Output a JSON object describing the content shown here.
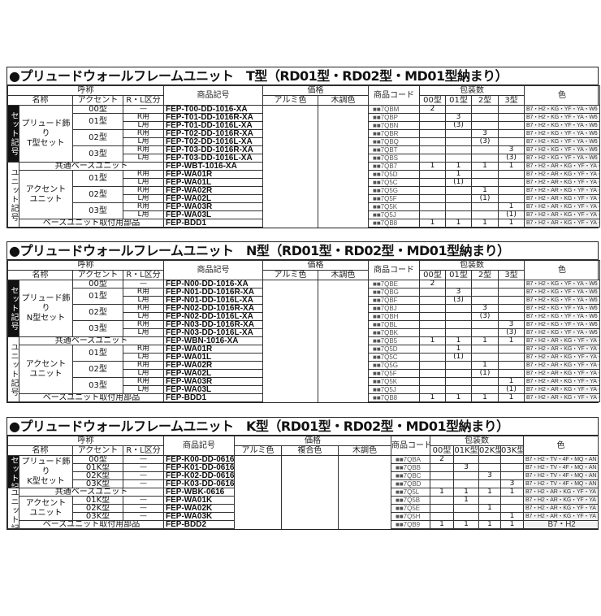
{
  "tables": [
    {
      "title": "●プリュードウォールフレームユニット　T型（RD01型・RD02型・MD01型納まり）",
      "headers": {
        "nominal": "呼称",
        "name": "名称",
        "accent": "アクセント",
        "rl": "R・L区分",
        "symbol": "商品記号",
        "price": "価格",
        "price_cols": [
          "アルミ色",
          "木調色"
        ],
        "code": "商品コード",
        "pack": "包装数",
        "pack_cols": [
          "00型",
          "01型",
          "2型",
          "3型"
        ],
        "color": "色"
      },
      "groups": [
        {
          "side": "セット記号",
          "dark": true,
          "rows": [
            {
              "name": "プリュード飾り\nT型セット",
              "accent": "00型",
              "rl": "—",
              "symbol": "FEP-T00-DD-1016-XA",
              "code": "■■7QBM",
              "qty": [
                "2",
                "",
                "",
                ""
              ],
              "color": "B7・H2・KG・YF・YA・W6"
            },
            {
              "name": "プリュード飾り\nT型セット",
              "accent": "01型",
              "rl": "R用",
              "symbol": "FEP-T01-DD-1016R-XA",
              "code": "■■7QBP",
              "qty": [
                "",
                "3",
                "",
                ""
              ],
              "color": "B7・H2・KG・YF・YA・W6"
            },
            {
              "name": "プリュード飾り\nT型セット",
              "accent": "01型",
              "rl": "L用",
              "symbol": "FEP-T01-DD-1016L-XA",
              "code": "■■7QBN",
              "qty": [
                "",
                "(3)",
                "",
                ""
              ],
              "color": "B7・H2・KG・YF・YA・W6"
            },
            {
              "name": "プリュード飾り\nT型セット",
              "accent": "02型",
              "rl": "R用",
              "symbol": "FEP-T02-DD-1016R-XA",
              "code": "■■7QBR",
              "qty": [
                "",
                "",
                "3",
                ""
              ],
              "color": "B7・H2・KG・YF・YA・W6"
            },
            {
              "name": "プリュード飾り\nT型セット",
              "accent": "02型",
              "rl": "L用",
              "symbol": "FEP-T02-DD-1016L-XA",
              "code": "■■7QBQ",
              "qty": [
                "",
                "",
                "(3)",
                ""
              ],
              "color": "B7・H2・KG・YF・YA・W6"
            },
            {
              "name": "プリュード飾り\nT型セット",
              "accent": "03型",
              "rl": "R用",
              "symbol": "FEP-T03-DD-1016R-XA",
              "code": "■■7QBT",
              "qty": [
                "",
                "",
                "",
                "3"
              ],
              "color": "B7・H2・KG・YF・YA・W6"
            },
            {
              "name": "プリュード飾り\nT型セット",
              "accent": "03型",
              "rl": "L用",
              "symbol": "FEP-T03-DD-1016L-XA",
              "code": "■■7QBS",
              "qty": [
                "",
                "",
                "",
                "(3)"
              ],
              "color": "B7・H2・KG・YF・YA・W6"
            }
          ]
        },
        {
          "side": "ユニット記号",
          "dark": false,
          "rows": [
            {
              "span_label": "共通ベースユニット",
              "symbol": "FEP-WBT-1016-XA",
              "code": "■■7QB7",
              "qty": [
                "1",
                "1",
                "1",
                "1"
              ],
              "color": "B7・H2・AR・KG・YF・YA・W6"
            },
            {
              "name": "アクセント\nユニット",
              "accent": "01型",
              "rl": "R用",
              "symbol": "FEP-WA01R",
              "code": "■■7Q5D",
              "qty": [
                "",
                "1",
                "",
                ""
              ],
              "color": "B7・H2・AR・KG・YF・YA・W6"
            },
            {
              "name": "アクセント\nユニット",
              "accent": "01型",
              "rl": "L用",
              "symbol": "FEP-WA01L",
              "code": "■■7Q5C",
              "qty": [
                "",
                "(1)",
                "",
                ""
              ],
              "color": "B7・H2・AR・KG・YF・YA・W6"
            },
            {
              "name": "アクセント\nユニット",
              "accent": "02型",
              "rl": "R用",
              "symbol": "FEP-WA02R",
              "code": "■■7Q5G",
              "qty": [
                "",
                "",
                "1",
                ""
              ],
              "color": "B7・H2・AR・KG・YF・YA・W6"
            },
            {
              "name": "アクセント\nユニット",
              "accent": "02型",
              "rl": "L用",
              "symbol": "FEP-WA02L",
              "code": "■■7Q5F",
              "qty": [
                "",
                "",
                "(1)",
                ""
              ],
              "color": "B7・H2・AR・KG・YF・YA・W6"
            },
            {
              "name": "アクセント\nユニット",
              "accent": "03型",
              "rl": "R用",
              "symbol": "FEP-WA03R",
              "code": "■■7Q5K",
              "qty": [
                "",
                "",
                "",
                "1"
              ],
              "color": "B7・H2・AR・KG・YF・YA・W6"
            },
            {
              "name": "アクセント\nユニット",
              "accent": "03型",
              "rl": "L用",
              "symbol": "FEP-WA03L",
              "code": "■■7Q5J",
              "qty": [
                "",
                "",
                "",
                "(1)"
              ],
              "color": "B7・H2・AR・KG・YF・YA・W6"
            },
            {
              "span_label": "ベースユニット取付用部品",
              "symbol": "FEP-BDD1",
              "code": "■■7QB8",
              "qty": [
                "1",
                "1",
                "1",
                "1"
              ],
              "color": "B7・H2・AR・KG・YF・YA・W6"
            }
          ]
        }
      ]
    },
    {
      "title": "●プリュードウォールフレームユニット　N型（RD01型・RD02型・MD01型納まり）",
      "headers": {
        "nominal": "呼称",
        "name": "名称",
        "accent": "アクセント",
        "rl": "R・L区分",
        "symbol": "商品記号",
        "price": "価格",
        "price_cols": [
          "アルミ色",
          "木調色"
        ],
        "code": "商品コード",
        "pack": "包装数",
        "pack_cols": [
          "00型",
          "01型",
          "2型",
          "3型"
        ],
        "color": "色"
      },
      "groups": [
        {
          "side": "セット記号",
          "dark": true,
          "rows": [
            {
              "name": "プリュード飾り\nN型セット",
              "accent": "00型",
              "rl": "—",
              "symbol": "FEP-N00-DD-1016-XA",
              "code": "■■7QBE",
              "qty": [
                "2",
                "",
                "",
                ""
              ],
              "color": "B7・H2・KG・YF・YA・W6"
            },
            {
              "name": "プリュード飾り\nN型セット",
              "accent": "01型",
              "rl": "R用",
              "symbol": "FEP-N01-DD-1016R-XA",
              "code": "■■7QBG",
              "qty": [
                "",
                "3",
                "",
                ""
              ],
              "color": "B7・H2・KG・YF・YA・W6"
            },
            {
              "name": "プリュード飾り\nN型セット",
              "accent": "01型",
              "rl": "L用",
              "symbol": "FEP-N01-DD-1016L-XA",
              "code": "■■7QBF",
              "qty": [
                "",
                "(3)",
                "",
                ""
              ],
              "color": "B7・H2・KG・YF・YA・W6"
            },
            {
              "name": "プリュード飾り\nN型セット",
              "accent": "02型",
              "rl": "R用",
              "symbol": "FEP-N02-DD-1016R-XA",
              "code": "■■7QBJ",
              "qty": [
                "",
                "",
                "3",
                ""
              ],
              "color": "B7・H2・KG・YF・YA・W6"
            },
            {
              "name": "プリュード飾り\nN型セット",
              "accent": "02型",
              "rl": "L用",
              "symbol": "FEP-N02-DD-1016L-XA",
              "code": "■■7QBH",
              "qty": [
                "",
                "",
                "(3)",
                ""
              ],
              "color": "B7・H2・KG・YF・YA・W6"
            },
            {
              "name": "プリュード飾り\nN型セット",
              "accent": "03型",
              "rl": "R用",
              "symbol": "FEP-N03-DD-1016R-XA",
              "code": "■■7QBL",
              "qty": [
                "",
                "",
                "",
                "3"
              ],
              "color": "B7・H2・KG・YF・YA・W6"
            },
            {
              "name": "プリュード飾り\nN型セット",
              "accent": "03型",
              "rl": "L用",
              "symbol": "FEP-N03-DD-1016L-XA",
              "code": "■■7QBK",
              "qty": [
                "",
                "",
                "",
                "(3)"
              ],
              "color": "B7・H2・KG・YF・YA・W6"
            }
          ]
        },
        {
          "side": "ユニット記号",
          "dark": false,
          "rows": [
            {
              "span_label": "共通ベースユニット",
              "symbol": "FEP-WBN-1016-XA",
              "code": "■■7QB5",
              "qty": [
                "1",
                "1",
                "1",
                "1"
              ],
              "color": "B7・H2・AR・KG・YF・YA・W6"
            },
            {
              "name": "アクセント\nユニット",
              "accent": "01型",
              "rl": "R用",
              "symbol": "FEP-WA01R",
              "code": "■■7Q5D",
              "qty": [
                "",
                "1",
                "",
                ""
              ],
              "color": "B7・H2・AR・KG・YF・YA・W6"
            },
            {
              "name": "アクセント\nユニット",
              "accent": "01型",
              "rl": "L用",
              "symbol": "FEP-WA01L",
              "code": "■■7Q5C",
              "qty": [
                "",
                "(1)",
                "",
                ""
              ],
              "color": "B7・H2・AR・KG・YF・YA・W6"
            },
            {
              "name": "アクセント\nユニット",
              "accent": "02型",
              "rl": "R用",
              "symbol": "FEP-WA02R",
              "code": "■■7Q5G",
              "qty": [
                "",
                "",
                "1",
                ""
              ],
              "color": "B7・H2・AR・KG・YF・YA・W6"
            },
            {
              "name": "アクセント\nユニット",
              "accent": "02型",
              "rl": "L用",
              "symbol": "FEP-WA02L",
              "code": "■■7Q5F",
              "qty": [
                "",
                "",
                "(1)",
                ""
              ],
              "color": "B7・H2・AR・KG・YF・YA・W6"
            },
            {
              "name": "アクセント\nユニット",
              "accent": "03型",
              "rl": "R用",
              "symbol": "FEP-WA03R",
              "code": "■■7Q5K",
              "qty": [
                "",
                "",
                "",
                "1"
              ],
              "color": "B7・H2・AR・KG・YF・YA・W6"
            },
            {
              "name": "アクセント\nユニット",
              "accent": "03型",
              "rl": "L用",
              "symbol": "FEP-WA03L",
              "code": "■■7Q5J",
              "qty": [
                "",
                "",
                "",
                "(1)"
              ],
              "color": "B7・H2・AR・KG・YF・YA・W6"
            },
            {
              "span_label": "ベースユニット取付用部品",
              "symbol": "FEP-BDD1",
              "code": "■■7QB8",
              "qty": [
                "1",
                "1",
                "1",
                "1"
              ],
              "color": "B7・H2・AR・KG・YF・YA・W6"
            }
          ]
        }
      ]
    },
    {
      "title": "●プリュードウォールフレームユニット　K型（RD01型・RD02型・MD01型納まり）",
      "headers": {
        "nominal": "呼称",
        "name": "名称",
        "accent": "アクセント",
        "rl": "R・L区分",
        "symbol": "商品記号",
        "price": "価格",
        "price_cols": [
          "アルミ色",
          "複合色",
          "木調色"
        ],
        "code": "商品コード",
        "pack": "包装数",
        "pack_cols": [
          "00型",
          "01K型",
          "02K型",
          "03K型"
        ],
        "color": "色"
      },
      "groups": [
        {
          "side": "セット記号",
          "dark": true,
          "rows": [
            {
              "name": "プリュード飾り\nK型セット",
              "accent": "00型",
              "rl": "—",
              "symbol": "FEP-K00-DD-0616",
              "code": "■■7QBA",
              "qty": [
                "2",
                "",
                "",
                ""
              ],
              "color": "B7・H2・TV・4F・MQ・AN・JQ・SI・PV・4D"
            },
            {
              "name": "プリュード飾り\nK型セット",
              "accent": "01K型",
              "rl": "—",
              "symbol": "FEP-K01-DD-0616",
              "code": "■■7QBB",
              "qty": [
                "",
                "3",
                "",
                ""
              ],
              "color": "B7・H2・TV・4F・MQ・AN・JQ・SI・PV・4D"
            },
            {
              "name": "プリュード飾り\nK型セット",
              "accent": "02K型",
              "rl": "—",
              "symbol": "FEP-K02-DD-0616",
              "code": "■■7QBC",
              "qty": [
                "",
                "",
                "3",
                ""
              ],
              "color": "B7・H2・TV・4F・MQ・AN・JQ・SI・PV・4D"
            },
            {
              "name": "プリュード飾り\nK型セット",
              "accent": "03K型",
              "rl": "—",
              "symbol": "FEP-K03-DD-0616",
              "code": "■■7QBD",
              "qty": [
                "",
                "",
                "",
                "3"
              ],
              "color": "B7・H2・TV・4F・MQ・AN・JQ・SI・PV・4D"
            }
          ]
        },
        {
          "side": "ユニット記号",
          "dark": false,
          "rows": [
            {
              "span_label": "共通ベースユニット",
              "symbol": "FEP-WBK-0616",
              "code": "■■7Q5L",
              "qty": [
                "1",
                "1",
                "1",
                "1"
              ],
              "color": "B7・H2・AR・KG・YF・YA・W6"
            },
            {
              "name": "アクセント\nユニット",
              "accent": "01K型",
              "rl": "—",
              "symbol": "FEP-WA01K",
              "code": "■■7Q5B",
              "qty": [
                "",
                "1",
                "",
                ""
              ],
              "color": "B7・H2・AR・KG・YF・YA・W6"
            },
            {
              "name": "アクセント\nユニット",
              "accent": "02K型",
              "rl": "—",
              "symbol": "FEP-WA02K",
              "code": "■■7Q5E",
              "qty": [
                "",
                "",
                "1",
                ""
              ],
              "color": "B7・H2・AR・KG・YF・YA・W6"
            },
            {
              "name": "アクセント\nユニット",
              "accent": "03K型",
              "rl": "—",
              "symbol": "FEP-WA03K",
              "code": "■■7Q5H",
              "qty": [
                "",
                "",
                "",
                "1"
              ],
              "color": "B7・H2・AR・KG・YF・YA・W6"
            },
            {
              "span_label": "ベースユニット取付用部品",
              "symbol": "FEP-BDD2",
              "code": "■■7QB9",
              "qty": [
                "1",
                "1",
                "1",
                "1"
              ],
              "color": "B7・H2"
            }
          ]
        }
      ]
    }
  ]
}
